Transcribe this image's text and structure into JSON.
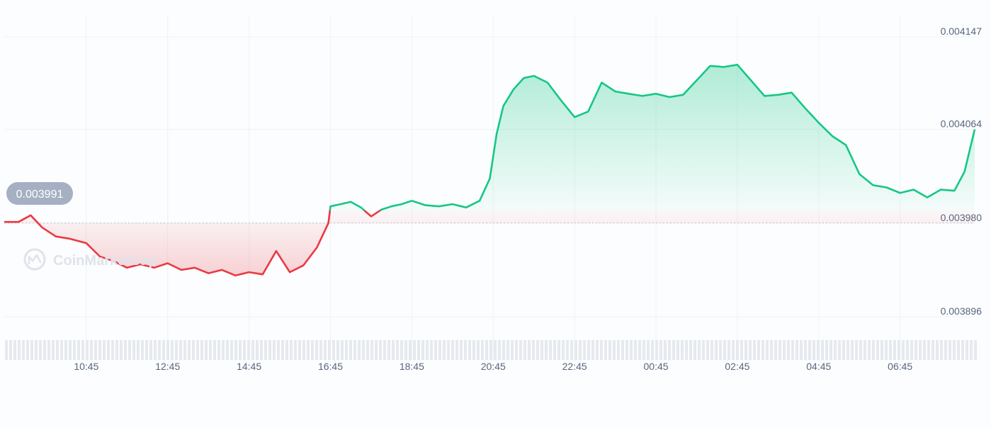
{
  "chart_data": {
    "type": "area",
    "baseline": 0.00398,
    "y_range": [
      0.003875,
      0.004147
    ],
    "y_ticks": [
      "0.004147",
      "0.004064",
      "0.003980",
      "0.003896"
    ],
    "x_ticks": [
      "10:45",
      "12:45",
      "14:45",
      "16:45",
      "18:45",
      "20:45",
      "22:45",
      "00:45",
      "02:45",
      "04:45",
      "06:45"
    ],
    "x_range": [
      "08:44",
      "08:35"
    ],
    "start_price_label": "0.003991",
    "grid": true,
    "colors": {
      "up": "#16c784",
      "down": "#ea3943",
      "baseline": "#c3c7cd",
      "label_bg": "#a6b0c3"
    },
    "series": [
      {
        "x": [
          "08:44",
          "09:05",
          "09:23",
          "09:40",
          "10:00",
          "10:20",
          "10:45",
          "11:05",
          "11:25",
          "11:45",
          "12:05",
          "12:25",
          "12:45",
          "13:05",
          "13:25",
          "13:45",
          "14:05",
          "14:25",
          "14:45",
          "15:05",
          "15:25",
          "15:45",
          "16:05",
          "16:25",
          "16:42",
          "16:45",
          "17:00",
          "17:15",
          "17:30",
          "17:45",
          "18:00",
          "18:15",
          "18:30",
          "18:45",
          "19:05",
          "19:25",
          "19:45",
          "20:05",
          "20:25",
          "20:40",
          "20:50",
          "21:00",
          "21:15",
          "21:30",
          "21:45",
          "22:05",
          "22:25",
          "22:45",
          "23:05",
          "23:25",
          "23:45",
          "00:05",
          "00:25",
          "00:45",
          "01:05",
          "01:25",
          "01:45",
          "02:05",
          "02:25",
          "02:45",
          "03:05",
          "03:25",
          "03:45",
          "04:05",
          "04:25",
          "04:45",
          "05:05",
          "05:25",
          "05:45",
          "06:05",
          "06:25",
          "06:45",
          "07:05",
          "07:25",
          "07:45",
          "08:05",
          "08:20",
          "08:35"
        ],
        "values": [
          0.003981,
          0.003981,
          0.003987,
          0.003976,
          0.003968,
          0.003966,
          0.003962,
          0.00395,
          0.003946,
          0.00394,
          0.003943,
          0.00394,
          0.003944,
          0.003938,
          0.00394,
          0.003935,
          0.003938,
          0.003933,
          0.003936,
          0.003934,
          0.003955,
          0.003936,
          0.003942,
          0.003958,
          0.00398,
          0.003995,
          0.003997,
          0.003999,
          0.003994,
          0.003986,
          0.003992,
          0.003995,
          0.003997,
          0.004,
          0.003996,
          0.003995,
          0.003997,
          0.003994,
          0.004,
          0.00402,
          0.00406,
          0.004085,
          0.0041,
          0.00411,
          0.004112,
          0.004106,
          0.00409,
          0.004075,
          0.00408,
          0.004106,
          0.004098,
          0.004096,
          0.004094,
          0.004096,
          0.004093,
          0.004095,
          0.004108,
          0.004121,
          0.00412,
          0.004122,
          0.004108,
          0.004094,
          0.004095,
          0.004097,
          0.004083,
          0.00407,
          0.004058,
          0.00405,
          0.004024,
          0.004014,
          0.004012,
          0.004007,
          0.00401,
          0.004003,
          0.00401,
          0.004009,
          0.004026,
          0.004064
        ]
      }
    ]
  },
  "watermark": "CoinMarketCap"
}
